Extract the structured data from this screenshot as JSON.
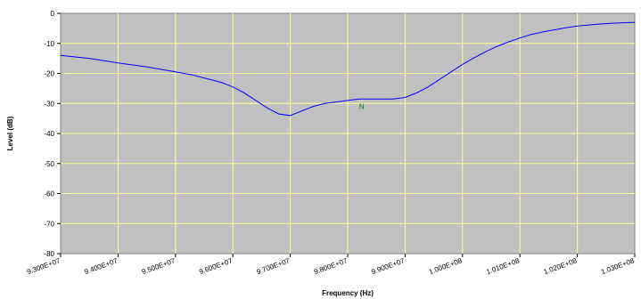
{
  "chart_data": {
    "type": "line",
    "title": "",
    "xlabel": "Frequency (Hz)",
    "ylabel": "Level (dB)",
    "xlim": [
      93000000,
      103000000
    ],
    "ylim": [
      -80,
      0
    ],
    "grid": true,
    "legend": "none",
    "x_ticks": [
      {
        "value": 93000000,
        "label": "9.300E+07"
      },
      {
        "value": 94000000,
        "label": "9.400E+07"
      },
      {
        "value": 95000000,
        "label": "9.500E+07"
      },
      {
        "value": 96000000,
        "label": "9.600E+07"
      },
      {
        "value": 97000000,
        "label": "9.700E+07"
      },
      {
        "value": 98000000,
        "label": "9.800E+07"
      },
      {
        "value": 99000000,
        "label": "9.900E+07"
      },
      {
        "value": 100000000,
        "label": "1.000E+08"
      },
      {
        "value": 101000000,
        "label": "1.010E+08"
      },
      {
        "value": 102000000,
        "label": "1.020E+08"
      },
      {
        "value": 103000000,
        "label": "1.030E+08"
      }
    ],
    "y_ticks": [
      {
        "value": 0,
        "label": "0"
      },
      {
        "value": -10,
        "label": "-10"
      },
      {
        "value": -20,
        "label": "-20"
      },
      {
        "value": -30,
        "label": "-30"
      },
      {
        "value": -40,
        "label": "-40"
      },
      {
        "value": -50,
        "label": "-50"
      },
      {
        "value": -60,
        "label": "-60"
      },
      {
        "value": -70,
        "label": "-70"
      },
      {
        "value": -80,
        "label": "-80"
      }
    ],
    "annotation": {
      "text": "N",
      "x": 98200000,
      "y": -31
    },
    "series": [
      {
        "color": "#0000ff",
        "points": [
          [
            93000000,
            -14.0
          ],
          [
            93500000,
            -15.0
          ],
          [
            94000000,
            -16.5
          ],
          [
            94500000,
            -17.8
          ],
          [
            95000000,
            -19.5
          ],
          [
            95300000,
            -20.5
          ],
          [
            95500000,
            -21.5
          ],
          [
            95800000,
            -23.0
          ],
          [
            96000000,
            -24.5
          ],
          [
            96200000,
            -26.5
          ],
          [
            96400000,
            -29.0
          ],
          [
            96600000,
            -31.5
          ],
          [
            96800000,
            -33.5
          ],
          [
            97000000,
            -34.0
          ],
          [
            97200000,
            -32.5
          ],
          [
            97400000,
            -31.0
          ],
          [
            97600000,
            -30.0
          ],
          [
            97800000,
            -29.5
          ],
          [
            98000000,
            -29.0
          ],
          [
            98200000,
            -28.5
          ],
          [
            98500000,
            -28.5
          ],
          [
            98800000,
            -28.5
          ],
          [
            99000000,
            -28.0
          ],
          [
            99200000,
            -26.5
          ],
          [
            99400000,
            -24.5
          ],
          [
            99600000,
            -22.0
          ],
          [
            99800000,
            -19.5
          ],
          [
            100000000,
            -17.0
          ],
          [
            100200000,
            -14.8
          ],
          [
            100400000,
            -12.8
          ],
          [
            100600000,
            -11.0
          ],
          [
            100800000,
            -9.5
          ],
          [
            101000000,
            -8.2
          ],
          [
            101200000,
            -7.0
          ],
          [
            101500000,
            -5.8
          ],
          [
            101800000,
            -4.8
          ],
          [
            102000000,
            -4.2
          ],
          [
            102300000,
            -3.7
          ],
          [
            102600000,
            -3.3
          ],
          [
            103000000,
            -3.0
          ]
        ]
      }
    ]
  }
}
